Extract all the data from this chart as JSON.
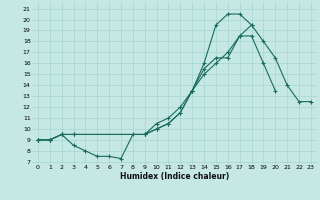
{
  "background_color": "#c5e8e5",
  "grid_color": "#a8d5d0",
  "line_color": "#1a6b5a",
  "xlabel": "Humidex (Indice chaleur)",
  "xlim": [
    -0.5,
    23.5
  ],
  "ylim": [
    6.8,
    21.6
  ],
  "xticks": [
    0,
    1,
    2,
    3,
    4,
    5,
    6,
    7,
    8,
    9,
    10,
    11,
    12,
    13,
    14,
    15,
    16,
    17,
    18,
    19,
    20,
    21,
    22,
    23
  ],
  "yticks": [
    7,
    8,
    9,
    10,
    11,
    12,
    13,
    14,
    15,
    16,
    17,
    18,
    19,
    20,
    21
  ],
  "line1_x": [
    0,
    1,
    2,
    3,
    4,
    5,
    6,
    7,
    8,
    9,
    10,
    11,
    12,
    13,
    14,
    15,
    16,
    17,
    18,
    19,
    20
  ],
  "line1_y": [
    9.0,
    9.0,
    9.5,
    8.5,
    8.0,
    7.5,
    7.5,
    7.3,
    9.5,
    9.5,
    10.5,
    11.0,
    12.0,
    13.5,
    15.5,
    16.5,
    16.5,
    18.5,
    18.5,
    16.0,
    13.5
  ],
  "line2_x": [
    0,
    1,
    2,
    3,
    9,
    10,
    11,
    12,
    13,
    14,
    15,
    16,
    17,
    18
  ],
  "line2_y": [
    9.0,
    9.0,
    9.5,
    9.5,
    9.5,
    10.0,
    10.5,
    11.5,
    13.5,
    16.0,
    19.5,
    20.5,
    20.5,
    19.5
  ],
  "line3_x": [
    0,
    1,
    2,
    3,
    9,
    10,
    11,
    12,
    13,
    14,
    15,
    16,
    17,
    18,
    19,
    20,
    21,
    22,
    23
  ],
  "line3_y": [
    9.0,
    9.0,
    9.5,
    9.5,
    9.5,
    10.0,
    10.5,
    11.5,
    13.5,
    15.0,
    16.0,
    17.0,
    18.5,
    19.5,
    18.0,
    16.5,
    14.0,
    12.5,
    12.5
  ],
  "figsize": [
    3.2,
    2.0
  ],
  "dpi": 100
}
